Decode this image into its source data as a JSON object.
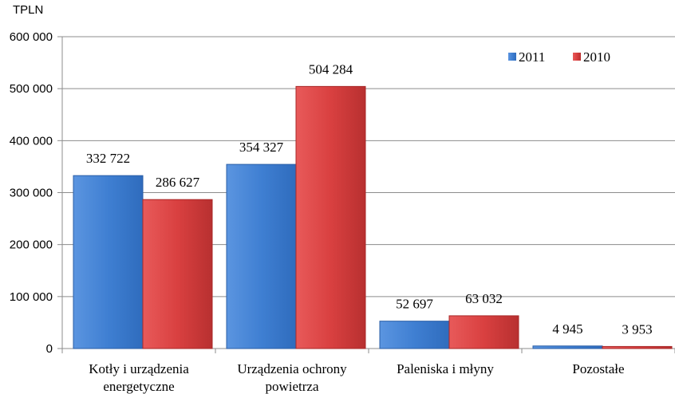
{
  "chart_data": {
    "type": "bar",
    "y_unit_label": "TPLN",
    "categories": [
      [
        "Kotły i urządzenia",
        "energetyczne"
      ],
      [
        "Urządzenia ochrony",
        "powietrza"
      ],
      [
        "Paleniska i młyny"
      ],
      [
        "Pozostałe"
      ]
    ],
    "series": [
      {
        "name": "2011",
        "color": "#4a86d4",
        "values": [
          332722,
          354327,
          52697,
          4945
        ],
        "labels": [
          "332 722",
          "354 327",
          "52 697",
          "4 945"
        ]
      },
      {
        "name": "2010",
        "color": "#d94040",
        "values": [
          286627,
          504284,
          63032,
          3953
        ],
        "labels": [
          "286 627",
          "504 284",
          "63 032",
          "3 953"
        ]
      }
    ],
    "ylim": [
      0,
      600000
    ],
    "yticks": [
      0,
      100000,
      200000,
      300000,
      400000,
      500000,
      600000
    ],
    "ytick_labels": [
      "0",
      "100 000",
      "200 000",
      "300 000",
      "400 000",
      "500 000",
      "600 000"
    ],
    "grid": true,
    "legend": "top-right"
  }
}
